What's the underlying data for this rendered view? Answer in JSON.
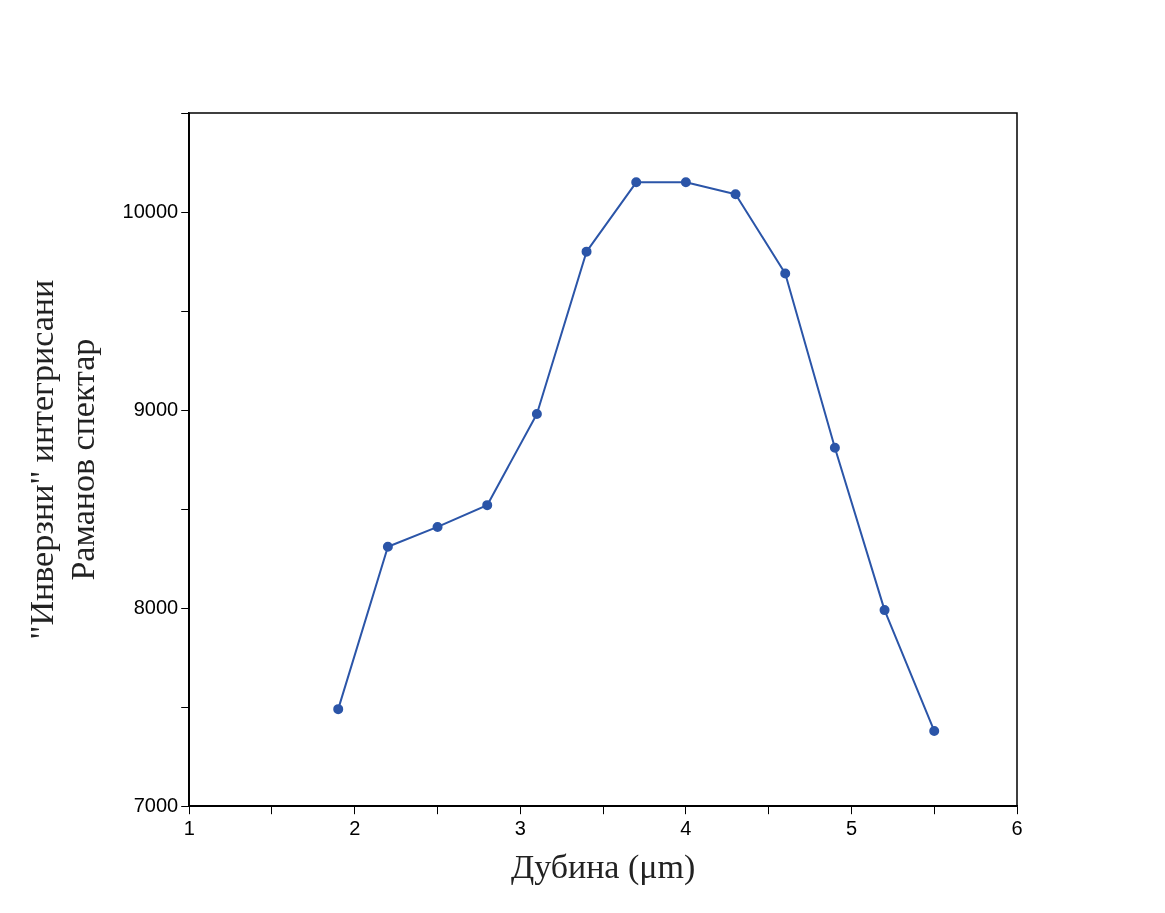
{
  "chart_data": {
    "type": "line",
    "xlabel": "Дубина (μm)",
    "ylabel": "\"Инверзни\" интегрисани\nРаманов спектар",
    "x": [
      1.9,
      2.2,
      2.5,
      2.8,
      3.1,
      3.4,
      3.7,
      4.0,
      4.3,
      4.6,
      4.9,
      5.2,
      5.5
    ],
    "series": [
      {
        "color": "#2b55a8",
        "values": [
          7490,
          8310,
          8410,
          8520,
          8980,
          9800,
          10150,
          10150,
          10090,
          9690,
          8810,
          7990,
          7380
        ]
      }
    ],
    "xlim": [
      1,
      6
    ],
    "xticks": [
      1,
      {
        "value": 1.5,
        "label": null
      },
      2,
      {
        "value": 2.5,
        "label": null
      },
      3,
      {
        "value": 3.5,
        "label": null
      },
      4,
      {
        "value": 4.5,
        "label": null
      },
      5,
      {
        "value": 5.5,
        "label": null
      },
      6
    ],
    "ylim": [
      7000,
      10500
    ],
    "yticks": [
      7000,
      {
        "value": 7500,
        "label": null
      },
      8000,
      {
        "value": 8500,
        "label": null
      },
      9000,
      {
        "value": 9500,
        "label": null
      },
      10000,
      {
        "value": 10500,
        "label": null
      }
    ],
    "grid": false,
    "legend": false,
    "marker": "circle",
    "line_style": "solid"
  }
}
